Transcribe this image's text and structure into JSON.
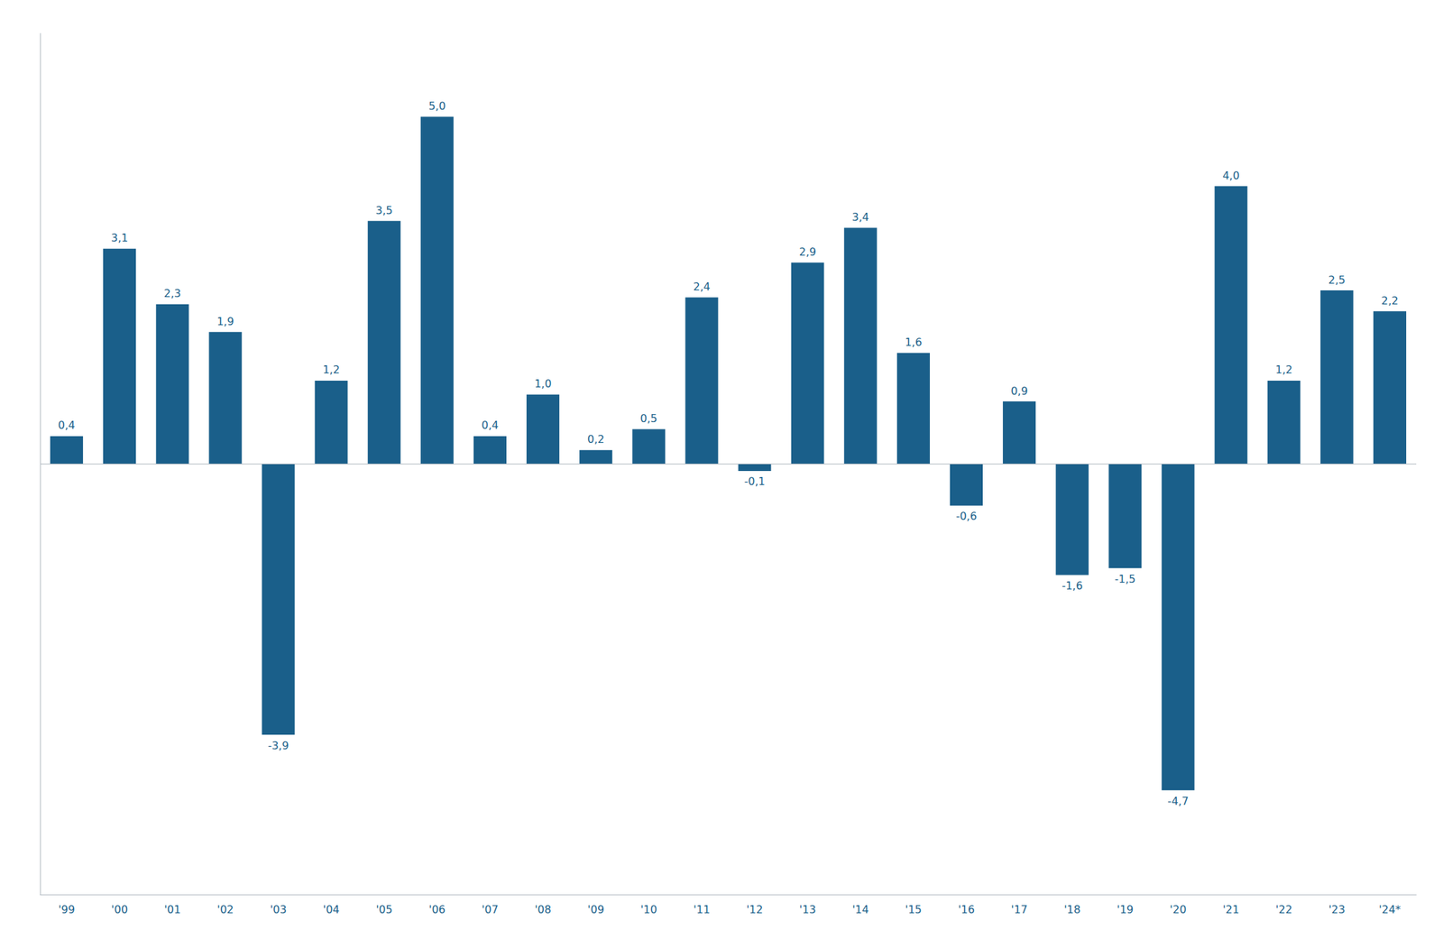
{
  "chart_data": {
    "type": "bar",
    "categories": [
      "'99",
      "'00",
      "'01",
      "'02",
      "'03",
      "'04",
      "'05",
      "'06",
      "'07",
      "'08",
      "'09",
      "'10",
      "'11",
      "'12",
      "'13",
      "'14",
      "'15",
      "'16",
      "'17",
      "'18",
      "'19",
      "'20",
      "'21",
      "'22",
      "'23",
      "'24*"
    ],
    "values": [
      0.4,
      3.1,
      2.3,
      1.9,
      -3.9,
      1.2,
      3.5,
      5.0,
      0.4,
      1.0,
      0.2,
      0.5,
      2.4,
      -0.1,
      2.9,
      3.4,
      1.6,
      -0.6,
      0.9,
      -1.6,
      -1.5,
      -4.7,
      4.0,
      1.2,
      2.5,
      2.2
    ],
    "value_labels": [
      "0,4",
      "3,1",
      "2,3",
      "1,9",
      "-3,9",
      "1,2",
      "3,5",
      "5,0",
      "0,4",
      "1,0",
      "0,2",
      "0,5",
      "2,4",
      "-0,1",
      "2,9",
      "3,4",
      "1,6",
      "-0,6",
      "0,9",
      "-1,6",
      "-1,5",
      "-4,7",
      "4,0",
      "1,2",
      "2,5",
      "2,2"
    ],
    "color": "#1a5f8a",
    "ylim": [
      -6.2,
      6.2
    ],
    "grid": false,
    "data_labels": true,
    "tick_labels": "x"
  }
}
